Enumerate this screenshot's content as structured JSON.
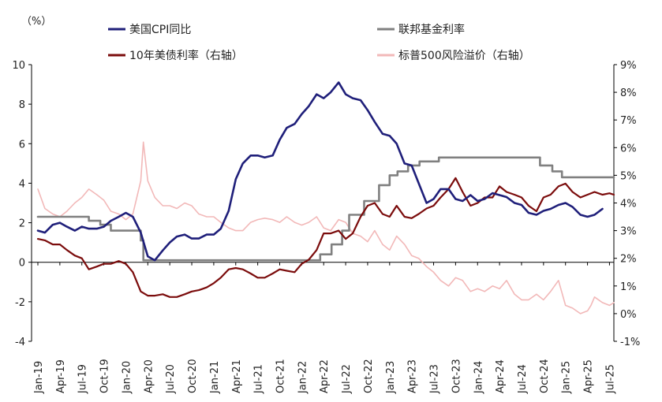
{
  "chart_data": {
    "type": "line",
    "unit_label": "（%）",
    "left_axis": {
      "ylim": [
        -4,
        10
      ],
      "ticks": [
        "10",
        "8",
        "6",
        "4",
        "2",
        "0",
        "-2",
        "-4"
      ],
      "negative_color": "#c00000"
    },
    "right_axis": {
      "ylim": [
        -1,
        9
      ],
      "ticks": [
        "9%",
        "8%",
        "7%",
        "6%",
        "5%",
        "4%",
        "3%",
        "2%",
        "1%",
        "0%",
        "-1%"
      ]
    },
    "x_ticks": [
      "Jan-19",
      "Apr-19",
      "Jul-19",
      "Oct-19",
      "Jan-20",
      "Apr-20",
      "Jul-20",
      "Oct-20",
      "Jan-21",
      "Apr-21",
      "Jul-21",
      "Oct-21",
      "Jan-22",
      "Apr-22",
      "Jul-22",
      "Oct-22",
      "Jan-23",
      "Apr-23",
      "Jul-23",
      "Oct-23",
      "Jan-24",
      "Apr-24",
      "Jul-24",
      "Oct-24",
      "Jan-25",
      "Apr-25",
      "Jul-25"
    ],
    "x_range": [
      2019.0,
      2025.55
    ],
    "legend": [
      {
        "label": "美国CPI同比",
        "color": "#1f1f7a"
      },
      {
        "label": "联邦基金利率",
        "color": "#808080"
      },
      {
        "label": "10年美债利率（右轴）",
        "color": "#7b0c0c"
      },
      {
        "label": "标普500风险溢价（右轴）",
        "color": "#f2b8b8"
      }
    ],
    "series": [
      {
        "name": "美国CPI同比",
        "axis": "left",
        "color": "#1f1f7a",
        "width": 2.6,
        "step": false,
        "x": [
          2019.0,
          2019.08,
          2019.17,
          2019.25,
          2019.33,
          2019.42,
          2019.5,
          2019.58,
          2019.67,
          2019.75,
          2019.83,
          2019.92,
          2020.0,
          2020.08,
          2020.17,
          2020.25,
          2020.33,
          2020.42,
          2020.5,
          2020.58,
          2020.67,
          2020.75,
          2020.83,
          2020.92,
          2021.0,
          2021.08,
          2021.17,
          2021.25,
          2021.33,
          2021.42,
          2021.5,
          2021.58,
          2021.67,
          2021.75,
          2021.83,
          2021.92,
          2022.0,
          2022.08,
          2022.17,
          2022.25,
          2022.33,
          2022.42,
          2022.5,
          2022.58,
          2022.67,
          2022.75,
          2022.83,
          2022.92,
          2023.0,
          2023.08,
          2023.17,
          2023.25,
          2023.33,
          2023.42,
          2023.5,
          2023.58,
          2023.67,
          2023.75,
          2023.83,
          2023.92,
          2024.0,
          2024.08,
          2024.17,
          2024.25,
          2024.33,
          2024.42,
          2024.5,
          2024.58,
          2024.67,
          2024.75,
          2024.83,
          2024.92,
          2025.0,
          2025.08,
          2025.17,
          2025.25,
          2025.33,
          2025.42
        ],
        "values": [
          1.6,
          1.5,
          1.9,
          2.0,
          1.8,
          1.6,
          1.8,
          1.7,
          1.7,
          1.8,
          2.1,
          2.3,
          2.5,
          2.3,
          1.5,
          0.3,
          0.1,
          0.6,
          1.0,
          1.3,
          1.4,
          1.2,
          1.2,
          1.4,
          1.4,
          1.7,
          2.6,
          4.2,
          5.0,
          5.4,
          5.4,
          5.3,
          5.4,
          6.2,
          6.8,
          7.0,
          7.5,
          7.9,
          8.5,
          8.3,
          8.6,
          9.1,
          8.5,
          8.3,
          8.2,
          7.7,
          7.1,
          6.5,
          6.4,
          6.0,
          5.0,
          4.9,
          4.0,
          3.0,
          3.2,
          3.7,
          3.7,
          3.2,
          3.1,
          3.4,
          3.1,
          3.2,
          3.5,
          3.4,
          3.3,
          3.0,
          2.9,
          2.5,
          2.4,
          2.6,
          2.7,
          2.9,
          3.0,
          2.8,
          2.4,
          2.3,
          2.4,
          2.7
        ]
      },
      {
        "name": "联邦基金利率",
        "axis": "left",
        "color": "#808080",
        "width": 2.6,
        "step": true,
        "x": [
          2019.0,
          2019.58,
          2019.71,
          2019.83,
          2020.17,
          2020.2,
          2022.21,
          2022.34,
          2022.46,
          2022.54,
          2022.71,
          2022.88,
          2023.0,
          2023.09,
          2023.21,
          2023.34,
          2023.56,
          2024.71,
          2024.85,
          2024.96,
          2025.55
        ],
        "values": [
          2.3,
          2.1,
          1.9,
          1.6,
          1.1,
          0.1,
          0.4,
          0.9,
          1.6,
          2.4,
          3.1,
          3.9,
          4.4,
          4.6,
          4.9,
          5.1,
          5.3,
          4.9,
          4.6,
          4.3,
          4.3
        ]
      },
      {
        "name": "10年美债利率（右轴）",
        "axis": "right",
        "color": "#7b0c0c",
        "width": 2.2,
        "step": false,
        "x": [
          2019.0,
          2019.08,
          2019.17,
          2019.25,
          2019.33,
          2019.42,
          2019.5,
          2019.58,
          2019.67,
          2019.75,
          2019.83,
          2019.92,
          2020.0,
          2020.08,
          2020.17,
          2020.25,
          2020.33,
          2020.42,
          2020.5,
          2020.58,
          2020.67,
          2020.75,
          2020.83,
          2020.92,
          2021.0,
          2021.08,
          2021.17,
          2021.25,
          2021.33,
          2021.42,
          2021.5,
          2021.58,
          2021.67,
          2021.75,
          2021.83,
          2021.92,
          2022.0,
          2022.08,
          2022.17,
          2022.25,
          2022.33,
          2022.42,
          2022.5,
          2022.58,
          2022.67,
          2022.75,
          2022.83,
          2022.92,
          2023.0,
          2023.08,
          2023.17,
          2023.25,
          2023.33,
          2023.42,
          2023.5,
          2023.58,
          2023.67,
          2023.75,
          2023.83,
          2023.92,
          2024.0,
          2024.08,
          2024.17,
          2024.25,
          2024.33,
          2024.42,
          2024.5,
          2024.58,
          2024.67,
          2024.75,
          2024.83,
          2024.92,
          2025.0,
          2025.08,
          2025.17,
          2025.25,
          2025.33,
          2025.42,
          2025.5,
          2025.55
        ],
        "values": [
          2.7,
          2.65,
          2.5,
          2.5,
          2.3,
          2.1,
          2.0,
          1.6,
          1.7,
          1.8,
          1.8,
          1.9,
          1.8,
          1.5,
          0.8,
          0.65,
          0.65,
          0.7,
          0.6,
          0.6,
          0.7,
          0.8,
          0.85,
          0.95,
          1.1,
          1.3,
          1.6,
          1.65,
          1.6,
          1.45,
          1.3,
          1.3,
          1.45,
          1.6,
          1.55,
          1.5,
          1.8,
          1.95,
          2.3,
          2.9,
          2.9,
          3.0,
          2.7,
          2.9,
          3.5,
          3.9,
          4.0,
          3.6,
          3.5,
          3.9,
          3.5,
          3.45,
          3.6,
          3.8,
          3.9,
          4.2,
          4.5,
          4.9,
          4.4,
          3.9,
          4.0,
          4.2,
          4.2,
          4.6,
          4.4,
          4.3,
          4.2,
          3.9,
          3.7,
          4.2,
          4.3,
          4.6,
          4.7,
          4.4,
          4.2,
          4.3,
          4.4,
          4.3,
          4.35,
          4.3
        ]
      },
      {
        "name": "标普500风险溢价（右轴）",
        "axis": "right",
        "color": "#f2b8b8",
        "width": 1.6,
        "step": false,
        "x": [
          2019.0,
          2019.08,
          2019.17,
          2019.25,
          2019.33,
          2019.42,
          2019.5,
          2019.58,
          2019.67,
          2019.75,
          2019.83,
          2019.92,
          2020.0,
          2020.08,
          2020.17,
          2020.2,
          2020.25,
          2020.33,
          2020.42,
          2020.5,
          2020.58,
          2020.67,
          2020.75,
          2020.83,
          2020.92,
          2021.0,
          2021.08,
          2021.17,
          2021.25,
          2021.33,
          2021.42,
          2021.5,
          2021.58,
          2021.67,
          2021.75,
          2021.83,
          2021.92,
          2022.0,
          2022.08,
          2022.17,
          2022.25,
          2022.33,
          2022.42,
          2022.5,
          2022.58,
          2022.67,
          2022.75,
          2022.83,
          2022.92,
          2023.0,
          2023.08,
          2023.17,
          2023.25,
          2023.33,
          2023.42,
          2023.5,
          2023.58,
          2023.67,
          2023.75,
          2023.83,
          2023.92,
          2024.0,
          2024.08,
          2024.17,
          2024.25,
          2024.33,
          2024.42,
          2024.5,
          2024.58,
          2024.67,
          2024.75,
          2024.83,
          2024.92,
          2025.0,
          2025.08,
          2025.17,
          2025.25,
          2025.29,
          2025.33,
          2025.42,
          2025.5,
          2025.55
        ],
        "values": [
          4.5,
          3.8,
          3.6,
          3.5,
          3.7,
          4.0,
          4.2,
          4.5,
          4.3,
          4.1,
          3.7,
          3.6,
          3.4,
          3.6,
          4.8,
          6.2,
          4.8,
          4.2,
          3.9,
          3.9,
          3.8,
          4.0,
          3.9,
          3.6,
          3.5,
          3.5,
          3.3,
          3.1,
          3.0,
          3.0,
          3.3,
          3.4,
          3.45,
          3.4,
          3.3,
          3.5,
          3.3,
          3.2,
          3.3,
          3.5,
          3.1,
          3.0,
          3.4,
          3.3,
          2.9,
          2.8,
          2.6,
          3.0,
          2.5,
          2.3,
          2.8,
          2.5,
          2.1,
          2.0,
          1.7,
          1.5,
          1.2,
          1.0,
          1.3,
          1.2,
          0.8,
          0.9,
          0.8,
          1.0,
          0.9,
          1.2,
          0.7,
          0.5,
          0.5,
          0.7,
          0.5,
          0.8,
          1.2,
          0.3,
          0.2,
          0.0,
          0.1,
          0.3,
          0.6,
          0.4,
          0.3,
          0.4
        ]
      }
    ]
  }
}
